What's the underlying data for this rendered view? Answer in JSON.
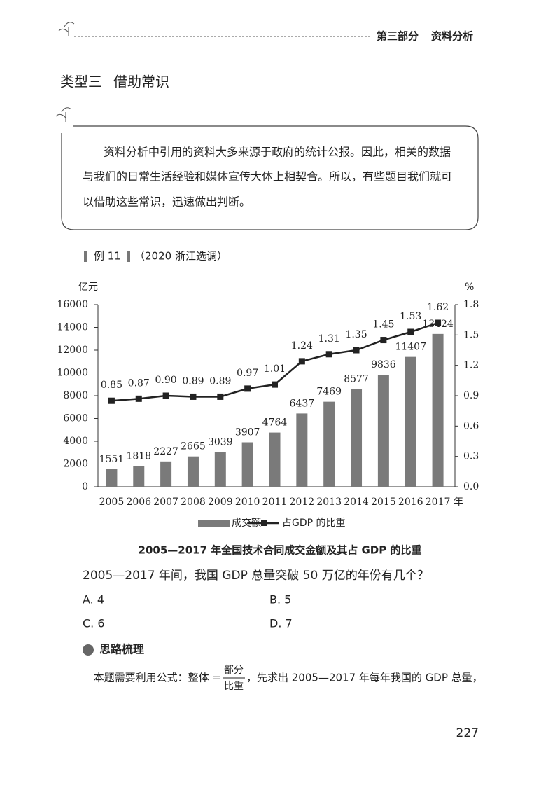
{
  "header": {
    "part": "第三部分",
    "section": "资料分析"
  },
  "heading": {
    "type": "类型三",
    "title": "借助常识"
  },
  "intro": [
    "资料分析中引用的资料大多来源于政府的统计公报。因此，相关的数据",
    "与我们的日常生活经验和媒体宣传大体上相契合。所以，有些题目我们就可",
    "以借助这些常识，迅速做出判断。"
  ],
  "example": {
    "label": "例 11",
    "source": "（2020 浙江选调）"
  },
  "chart_data": {
    "type": "combo",
    "title": "2005—2017 年全国技术合同成交金额及其占 GDP 的比重",
    "y_label": "亿元",
    "y2_label": "%",
    "x_unit": "年",
    "categories": [
      "2005",
      "2006",
      "2007",
      "2008",
      "2009",
      "2010",
      "2011",
      "2012",
      "2013",
      "2014",
      "2015",
      "2016",
      "2017"
    ],
    "series": [
      {
        "name": "成交额",
        "kind": "bar",
        "color": "#7a7a7a",
        "values": [
          1551,
          1818,
          2227,
          2665,
          3039,
          3907,
          4764,
          6437,
          7469,
          8577,
          9836,
          11407,
          13424
        ]
      },
      {
        "name": "占GDP 的比重",
        "kind": "line",
        "axis": "y2",
        "color": "#222222",
        "values": [
          0.85,
          0.87,
          0.9,
          0.89,
          0.89,
          0.97,
          1.01,
          1.24,
          1.31,
          1.35,
          1.45,
          1.53,
          1.62
        ],
        "value_labels": [
          "0.85",
          "0.87",
          "0.90",
          "0.89",
          "0.89",
          "0.97",
          "1.01",
          "1.24",
          "1.31",
          "1.35",
          "1.45",
          "1.53",
          "1.62"
        ]
      }
    ],
    "ylim": [
      0,
      16000
    ],
    "yticks": [
      0,
      2000,
      4000,
      6000,
      8000,
      10000,
      12000,
      14000,
      16000
    ],
    "y2lim": [
      0,
      1.8
    ],
    "y2ticks": [
      {
        "value": 0,
        "label": "0.0"
      },
      0.3,
      0.6,
      0.9,
      1.2,
      1.5,
      1.8
    ],
    "grid": false
  },
  "question": {
    "text": "2005—2017 年间，我国 GDP 总量突破 50 万亿的年份有几个？",
    "options": [
      "A. 4",
      "B. 5",
      "C. 6",
      "D. 7"
    ]
  },
  "analysis": {
    "title": "思路梳理",
    "text_before": "本题需要利用公式：整体 =",
    "numerator": "部分",
    "denominator": "比重",
    "text_after": "，先求出 2005—2017 年每年我国的 GDP 总量，"
  },
  "page_number": "227"
}
